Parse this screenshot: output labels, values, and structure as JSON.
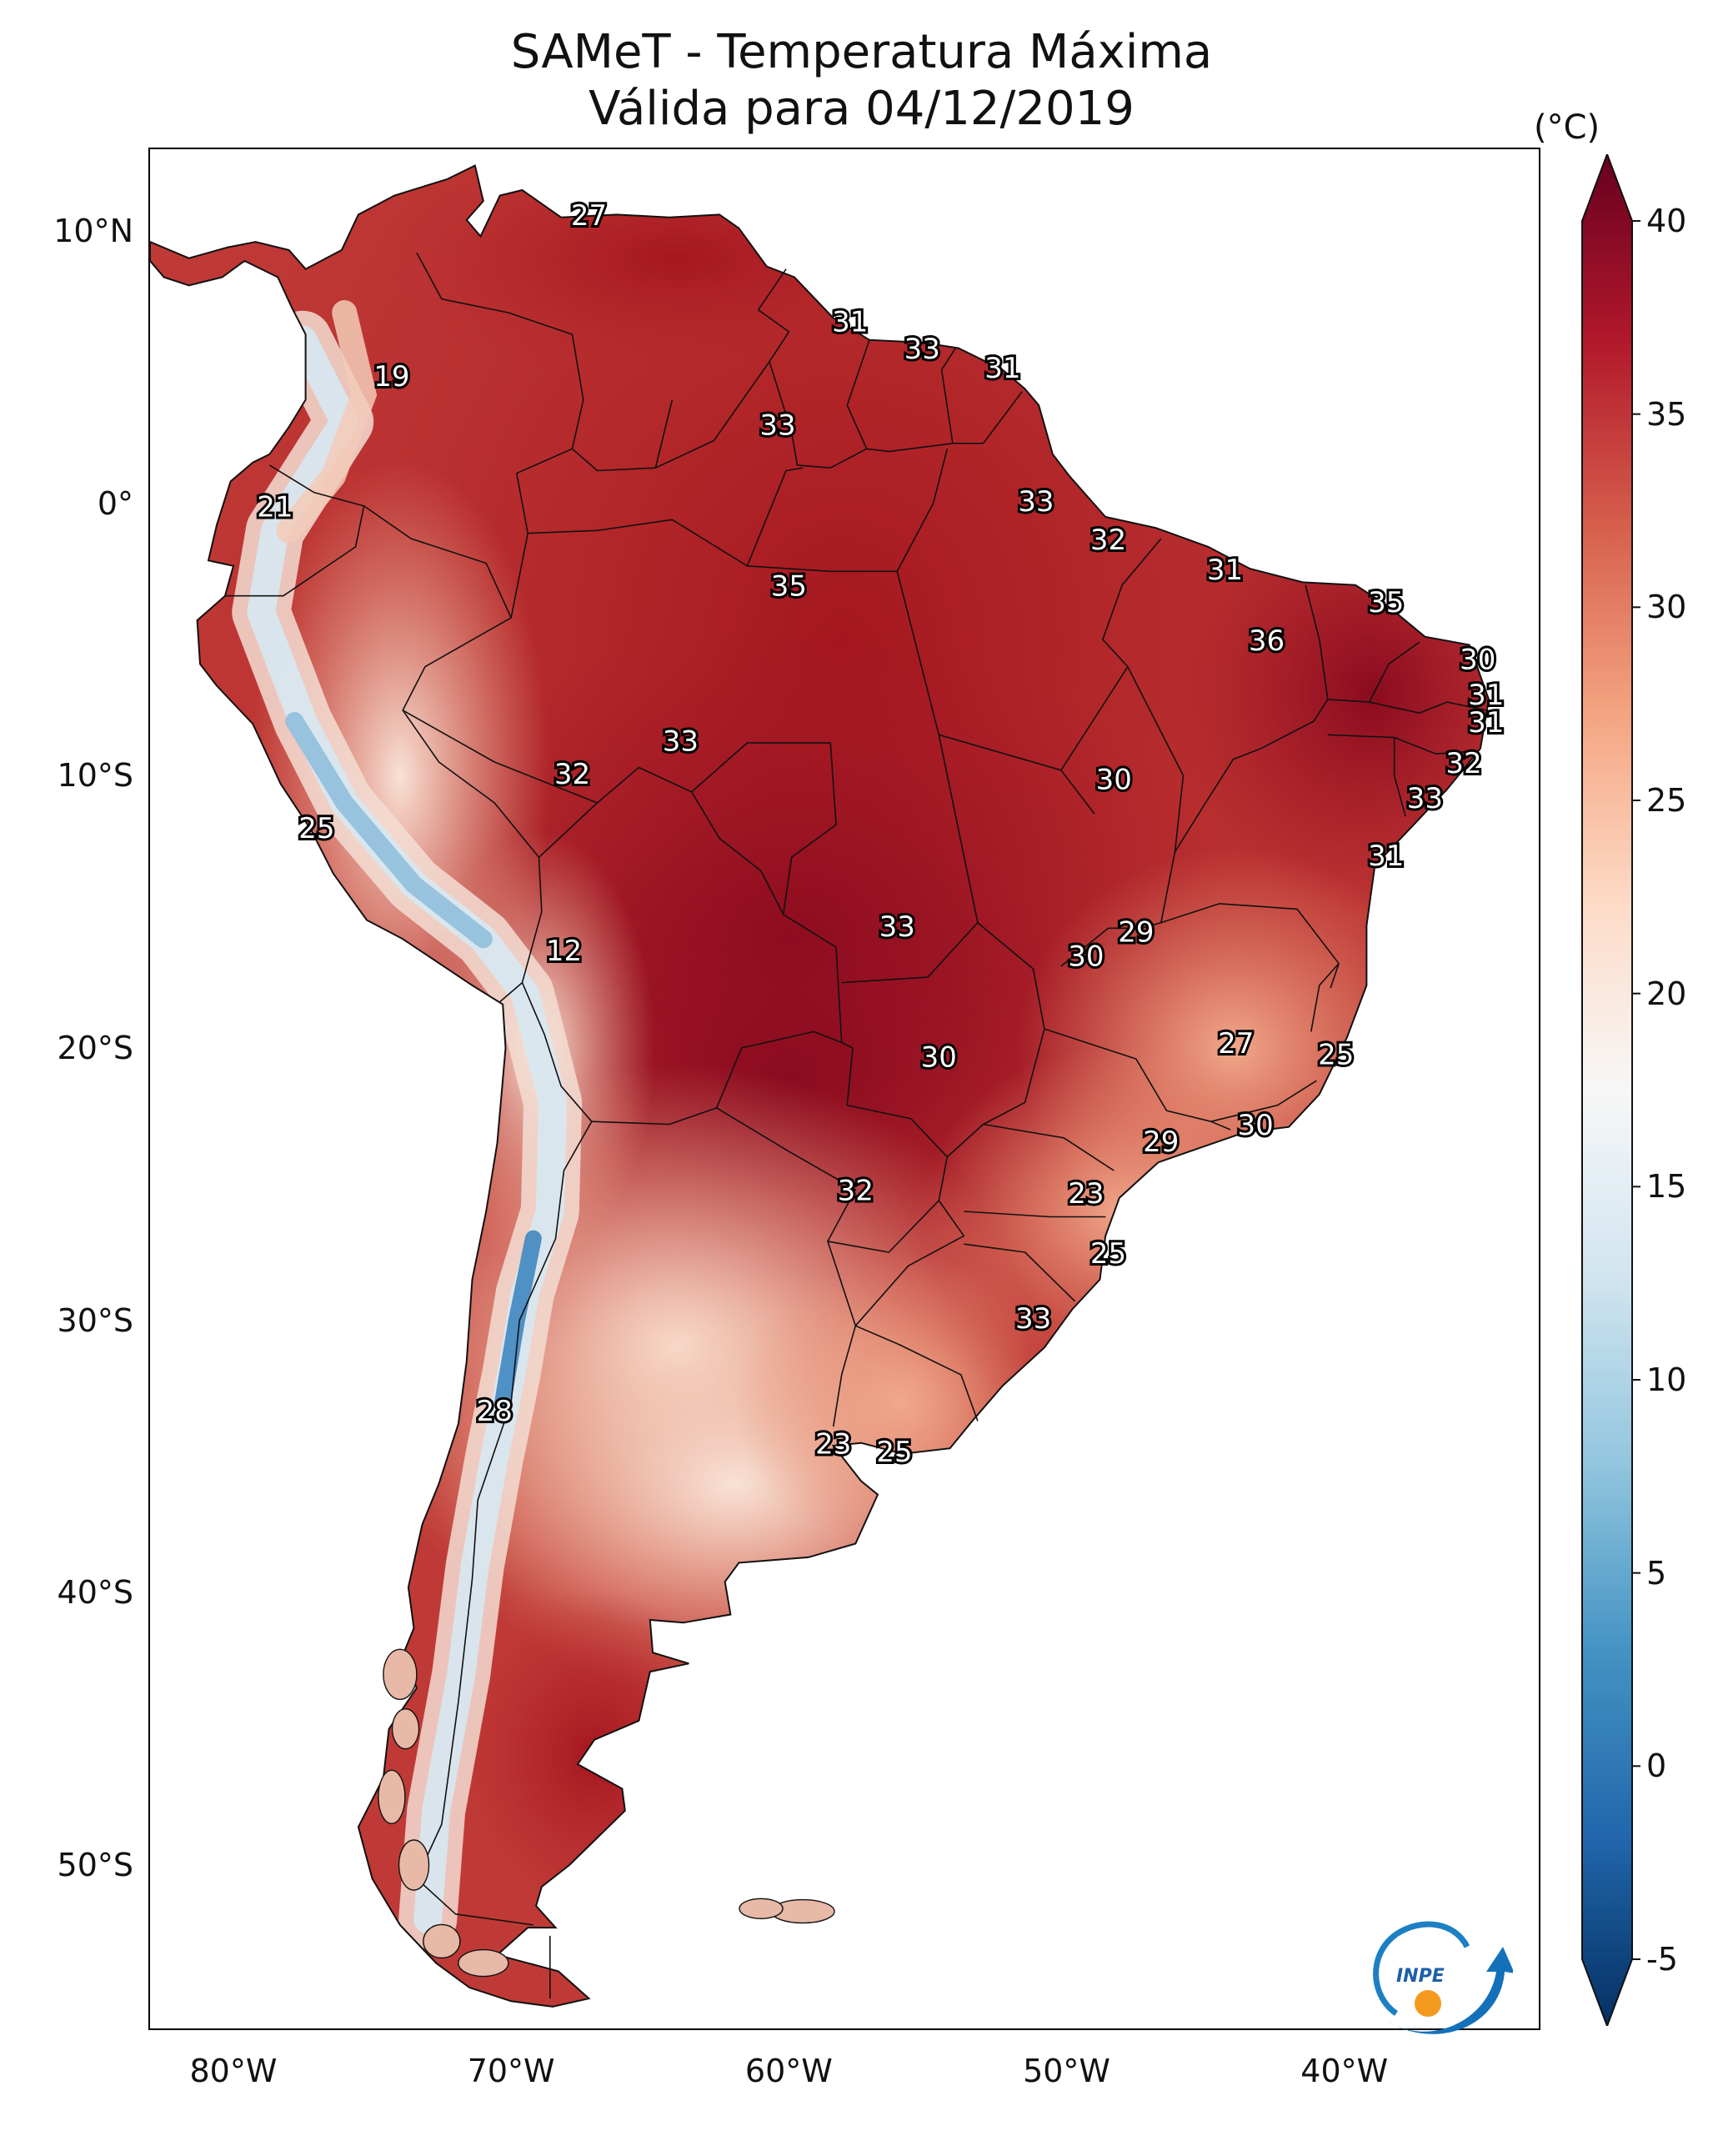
{
  "title": {
    "line1": "SAMeT - Temperatura Máxima",
    "line2": "Válida para 04/12/2019"
  },
  "map": {
    "lon_range": [
      -83,
      -33
    ],
    "lat_range": [
      -56,
      13
    ],
    "lat_ticks": [
      {
        "value": 10,
        "label": "10°N"
      },
      {
        "value": 0,
        "label": "0°"
      },
      {
        "value": -10,
        "label": "10°S"
      },
      {
        "value": -20,
        "label": "20°S"
      },
      {
        "value": -30,
        "label": "30°S"
      },
      {
        "value": -40,
        "label": "40°S"
      },
      {
        "value": -50,
        "label": "50°S"
      }
    ],
    "lon_ticks": [
      {
        "value": -80,
        "label": "80°W"
      },
      {
        "value": -70,
        "label": "70°W"
      },
      {
        "value": -60,
        "label": "60°W"
      },
      {
        "value": -50,
        "label": "50°W"
      },
      {
        "value": -40,
        "label": "40°W"
      }
    ],
    "city_labels": [
      {
        "lon": -67.2,
        "lat": 10.5,
        "text": "27"
      },
      {
        "lon": -74.3,
        "lat": 4.6,
        "text": "19"
      },
      {
        "lon": -57.8,
        "lat": 6.6,
        "text": "31"
      },
      {
        "lon": -55.2,
        "lat": 5.6,
        "text": "33"
      },
      {
        "lon": -52.3,
        "lat": 4.9,
        "text": "31"
      },
      {
        "lon": -60.4,
        "lat": 2.8,
        "text": "33"
      },
      {
        "lon": -78.5,
        "lat": -0.2,
        "text": "21"
      },
      {
        "lon": -51.1,
        "lat": 0.0,
        "text": "33"
      },
      {
        "lon": -48.5,
        "lat": -1.4,
        "text": "32"
      },
      {
        "lon": -44.3,
        "lat": -2.5,
        "text": "31"
      },
      {
        "lon": -60.0,
        "lat": -3.1,
        "text": "35"
      },
      {
        "lon": -38.5,
        "lat": -3.7,
        "text": "35"
      },
      {
        "lon": -42.8,
        "lat": -5.1,
        "text": "36"
      },
      {
        "lon": -35.2,
        "lat": -5.8,
        "text": "30"
      },
      {
        "lon": -34.9,
        "lat": -7.1,
        "text": "31"
      },
      {
        "lon": -34.9,
        "lat": -8.1,
        "text": "31"
      },
      {
        "lon": -63.9,
        "lat": -8.8,
        "text": "33"
      },
      {
        "lon": -35.7,
        "lat": -9.6,
        "text": "32"
      },
      {
        "lon": -67.8,
        "lat": -10.0,
        "text": "32"
      },
      {
        "lon": -48.3,
        "lat": -10.2,
        "text": "30"
      },
      {
        "lon": -37.1,
        "lat": -10.9,
        "text": "33"
      },
      {
        "lon": -77.0,
        "lat": -12.0,
        "text": "25"
      },
      {
        "lon": -38.5,
        "lat": -13.0,
        "text": "31"
      },
      {
        "lon": -56.1,
        "lat": -15.6,
        "text": "33"
      },
      {
        "lon": -47.5,
        "lat": -15.8,
        "text": "29"
      },
      {
        "lon": -49.3,
        "lat": -16.7,
        "text": "30"
      },
      {
        "lon": -68.1,
        "lat": -16.5,
        "text": "12"
      },
      {
        "lon": -43.9,
        "lat": -19.9,
        "text": "27"
      },
      {
        "lon": -40.3,
        "lat": -20.3,
        "text": "25"
      },
      {
        "lon": -54.6,
        "lat": -20.4,
        "text": "30"
      },
      {
        "lon": -43.2,
        "lat": -22.9,
        "text": "30"
      },
      {
        "lon": -46.6,
        "lat": -23.5,
        "text": "29"
      },
      {
        "lon": -57.6,
        "lat": -25.3,
        "text": "32"
      },
      {
        "lon": -49.3,
        "lat": -25.4,
        "text": "23"
      },
      {
        "lon": -48.5,
        "lat": -27.6,
        "text": "25"
      },
      {
        "lon": -51.2,
        "lat": -30.0,
        "text": "33"
      },
      {
        "lon": -70.6,
        "lat": -33.4,
        "text": "28"
      },
      {
        "lon": -58.4,
        "lat": -34.6,
        "text": "23"
      },
      {
        "lon": -56.2,
        "lat": -34.9,
        "text": "25"
      }
    ]
  },
  "colorbar": {
    "unit": "(°C)",
    "min": -5,
    "max": 40,
    "ticks": [
      {
        "value": 40,
        "label": "40"
      },
      {
        "value": 35,
        "label": "35"
      },
      {
        "value": 30,
        "label": "30"
      },
      {
        "value": 25,
        "label": "25"
      },
      {
        "value": 20,
        "label": "20"
      },
      {
        "value": 15,
        "label": "15"
      },
      {
        "value": 10,
        "label": "10"
      },
      {
        "value": 5,
        "label": "5"
      },
      {
        "value": 0,
        "label": "0"
      },
      {
        "value": -5,
        "label": "-5"
      }
    ],
    "colors": [
      "#053061",
      "#2166ac",
      "#4393c3",
      "#92c5de",
      "#d1e5f0",
      "#f7f7f7",
      "#fddbc7",
      "#f4a582",
      "#d6604d",
      "#b2182b",
      "#67001f"
    ]
  },
  "logo": {
    "text": "INPE"
  }
}
